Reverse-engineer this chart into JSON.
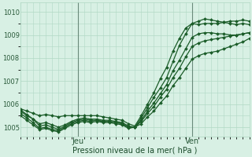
{
  "xlabel": "Pression niveau de la mer( hPa )",
  "ylim": [
    1004.6,
    1010.4
  ],
  "xlim": [
    0,
    36
  ],
  "yticks": [
    1005,
    1006,
    1007,
    1008,
    1009,
    1010
  ],
  "xtick_positions": [
    9,
    27
  ],
  "xtick_labels": [
    "Jeu",
    "Ven"
  ],
  "vlines": [
    9,
    27
  ],
  "bg_color": "#d8f0e4",
  "grid_color": "#b0d8c4",
  "line_color": "#1a5c28",
  "marker": "D",
  "markersize": 2.0,
  "linewidth": 0.9,
  "series": [
    [
      1005.8,
      1005.7,
      1005.6,
      1005.5,
      1005.55,
      1005.5,
      1005.45,
      1005.5,
      1005.5,
      1005.5,
      1005.5,
      1005.5,
      1005.5,
      1005.45,
      1005.4,
      1005.35,
      1005.3,
      1005.15,
      1005.05,
      1005.5,
      1006.0,
      1006.5,
      1007.1,
      1007.6,
      1008.3,
      1008.85,
      1009.3,
      1009.5,
      1009.45,
      1009.5,
      1009.5,
      1009.5,
      1009.55,
      1009.6,
      1009.6,
      1009.65,
      1009.6
    ],
    [
      1005.7,
      1005.5,
      1005.35,
      1005.15,
      1005.2,
      1005.1,
      1005.0,
      1005.1,
      1005.25,
      1005.35,
      1005.4,
      1005.35,
      1005.35,
      1005.3,
      1005.3,
      1005.25,
      1005.2,
      1005.05,
      1005.0,
      1005.4,
      1005.85,
      1006.3,
      1006.7,
      1007.15,
      1007.85,
      1008.55,
      1009.05,
      1009.5,
      1009.6,
      1009.7,
      1009.65,
      1009.6,
      1009.55,
      1009.5,
      1009.45,
      1009.5,
      1009.45
    ],
    [
      1005.75,
      1005.55,
      1005.35,
      1005.05,
      1005.1,
      1005.0,
      1004.9,
      1005.05,
      1005.2,
      1005.3,
      1005.35,
      1005.3,
      1005.3,
      1005.25,
      1005.25,
      1005.2,
      1005.15,
      1005.0,
      1005.0,
      1005.3,
      1005.7,
      1006.05,
      1006.45,
      1006.85,
      1007.45,
      1007.9,
      1008.4,
      1008.9,
      1009.05,
      1009.1,
      1009.1,
      1009.05,
      1009.05,
      1009.0,
      1009.0,
      1009.05,
      1009.1
    ],
    [
      1005.6,
      1005.4,
      1005.2,
      1004.95,
      1005.0,
      1004.9,
      1004.85,
      1005.0,
      1005.15,
      1005.25,
      1005.3,
      1005.25,
      1005.3,
      1005.25,
      1005.25,
      1005.2,
      1005.15,
      1005.0,
      1005.0,
      1005.25,
      1005.6,
      1005.9,
      1006.3,
      1006.65,
      1007.15,
      1007.55,
      1008.05,
      1008.5,
      1008.65,
      1008.75,
      1008.8,
      1008.85,
      1008.9,
      1008.95,
      1009.0,
      1009.05,
      1009.1
    ],
    [
      1005.5,
      1005.3,
      1005.1,
      1004.9,
      1004.95,
      1004.85,
      1004.8,
      1004.95,
      1005.1,
      1005.2,
      1005.25,
      1005.2,
      1005.25,
      1005.2,
      1005.2,
      1005.15,
      1005.1,
      1004.95,
      1005.0,
      1005.15,
      1005.45,
      1005.7,
      1006.05,
      1006.35,
      1006.8,
      1007.15,
      1007.55,
      1007.95,
      1008.1,
      1008.2,
      1008.25,
      1008.3,
      1008.4,
      1008.5,
      1008.6,
      1008.7,
      1008.85
    ]
  ]
}
